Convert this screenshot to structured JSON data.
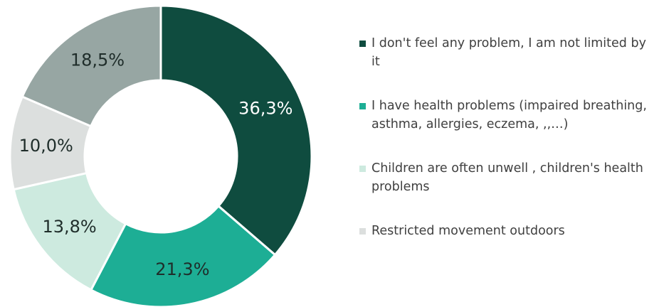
{
  "chart_data": {
    "type": "pie",
    "variant": "donut",
    "title": "",
    "unit": "%",
    "legend_position": "right",
    "slices": [
      {
        "label": "I don't feel any problem, I am not limited by it",
        "value": 36.3,
        "display": "36,3%",
        "color": "#0f4c3f",
        "text_color": "#ffffff",
        "in_legend": true
      },
      {
        "label": "I have health problems (impaired breathing, asthma, allergies, eczema, ,,…)",
        "value": 21.3,
        "display": "21,3%",
        "color": "#1dae95",
        "text_color": "#1f2d2a",
        "in_legend": true
      },
      {
        "label": "Children are often unwell , children's health problems",
        "value": 13.8,
        "display": "13,8%",
        "color": "#cdeadf",
        "text_color": "#1f2d2a",
        "in_legend": true
      },
      {
        "label": "Restricted movement outdoors",
        "value": 10.0,
        "display": "10,0%",
        "color": "#dcdfde",
        "text_color": "#1f2d2a",
        "in_legend": true
      },
      {
        "label": "",
        "value": 18.5,
        "display": "18,5%",
        "color": "#97a6a3",
        "text_color": "#1f2d2a",
        "in_legend": false
      }
    ]
  }
}
